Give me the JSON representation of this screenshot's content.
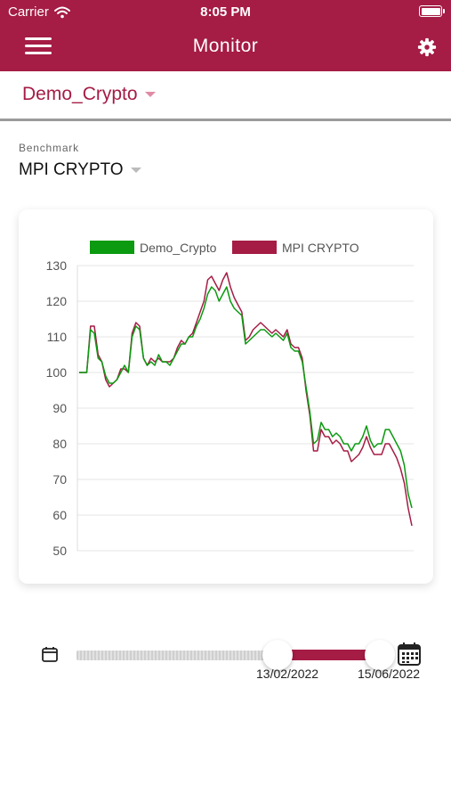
{
  "status_bar": {
    "carrier": "Carrier",
    "time": "8:05 PM"
  },
  "header": {
    "title": "Monitor"
  },
  "portfolio": {
    "selected": "Demo_Crypto"
  },
  "benchmark": {
    "label": "Benchmark",
    "selected": "MPI CRYPTO"
  },
  "colors": {
    "brand": "#a51c45",
    "demo_series": "#0b9a10",
    "benchmark_series": "#a51c45"
  },
  "icons": {
    "menu": "menu-icon",
    "settings": "gear-icon",
    "wifi": "wifi-icon",
    "battery": "battery-icon",
    "calendar_start": "calendar-icon",
    "calendar_end": "calendar-grid-icon"
  },
  "chart_data": {
    "type": "line",
    "title": "",
    "xlabel": "",
    "ylabel": "",
    "ylim": [
      50,
      130
    ],
    "yticks": [
      130,
      120,
      110,
      100,
      90,
      80,
      70,
      60,
      50
    ],
    "grid": true,
    "legend_position": "top-center",
    "series": [
      {
        "name": "Demo_Crypto",
        "values": [
          100,
          100,
          100,
          112,
          111,
          104,
          103,
          99,
          97,
          97,
          98,
          100,
          102,
          100,
          110,
          113,
          112,
          104,
          102,
          103,
          102,
          105,
          103,
          103,
          102,
          104,
          106,
          108,
          108,
          110,
          110,
          113,
          115,
          118,
          122,
          124,
          123,
          120,
          122,
          124,
          120,
          118,
          117,
          116,
          108,
          109,
          110,
          111,
          112,
          112,
          111,
          110,
          111,
          110,
          109,
          111,
          107,
          106,
          106,
          103,
          96,
          89,
          80,
          81,
          86,
          84,
          84,
          82,
          83,
          82,
          80,
          80,
          78,
          80,
          80,
          82,
          85,
          81,
          79,
          80,
          80,
          84,
          84,
          82,
          80,
          78,
          74,
          66,
          62
        ]
      },
      {
        "name": "MPI CRYPTO",
        "values": [
          100,
          100,
          100,
          113,
          113,
          105,
          103,
          98,
          96,
          97,
          98,
          101,
          101,
          100,
          111,
          114,
          113,
          104,
          102,
          104,
          103,
          104,
          103,
          103,
          103,
          104,
          107,
          109,
          108,
          110,
          111,
          114,
          117,
          120,
          126,
          127,
          125,
          123,
          126,
          128,
          124,
          121,
          119,
          117,
          109,
          110,
          112,
          113,
          114,
          113,
          112,
          111,
          112,
          111,
          110,
          112,
          108,
          107,
          107,
          104,
          95,
          88,
          78,
          78,
          84,
          82,
          82,
          80,
          81,
          80,
          78,
          78,
          75,
          76,
          77,
          79,
          82,
          79,
          77,
          77,
          77,
          80,
          80,
          78,
          76,
          73,
          69,
          62,
          57
        ]
      }
    ]
  },
  "date_range": {
    "start": "13/02/2022",
    "end": "15/06/2022",
    "selected_start_fraction": 0.67,
    "selected_end_fraction": 1.0
  }
}
